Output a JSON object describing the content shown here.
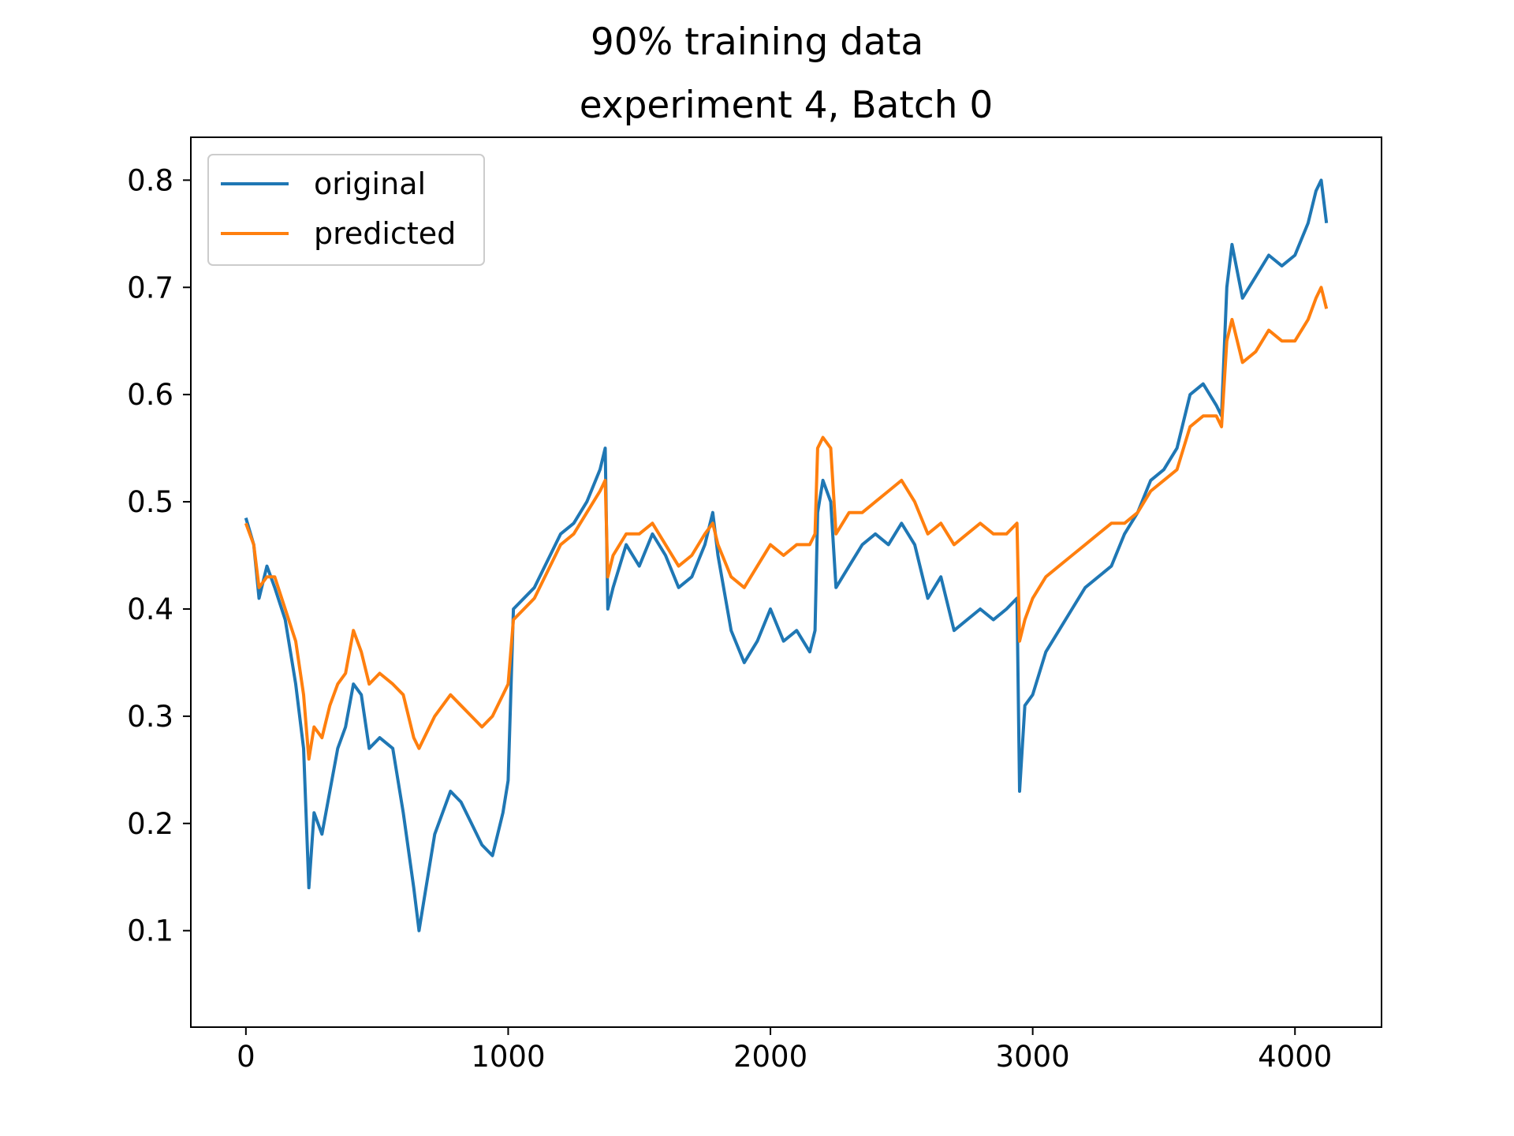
{
  "figure": {
    "suptitle": "90% training data",
    "title": "experiment 4, Batch 0"
  },
  "chart_data": {
    "type": "line",
    "title": "experiment 4, Batch 0",
    "xlabel": "",
    "ylabel": "",
    "xlim": [
      -210,
      4330
    ],
    "ylim": [
      0.01,
      0.84
    ],
    "xticks": [
      0,
      1000,
      2000,
      3000,
      4000
    ],
    "xtick_labels": [
      "0",
      "1000",
      "2000",
      "3000",
      "4000"
    ],
    "yticks": [
      0.1,
      0.2,
      0.3,
      0.4,
      0.5,
      0.6,
      0.7,
      0.8
    ],
    "ytick_labels": [
      "0.1",
      "0.2",
      "0.3",
      "0.4",
      "0.5",
      "0.6",
      "0.7",
      "0.8"
    ],
    "grid": false,
    "legend": {
      "position": "upper-left",
      "entries": [
        "original",
        "predicted"
      ]
    },
    "series": [
      {
        "name": "original",
        "color": "#1f77b4",
        "x": [
          0,
          30,
          50,
          80,
          110,
          150,
          190,
          220,
          240,
          260,
          290,
          320,
          350,
          380,
          410,
          440,
          470,
          510,
          560,
          600,
          640,
          660,
          680,
          720,
          780,
          820,
          860,
          900,
          940,
          980,
          1000,
          1020,
          1100,
          1200,
          1250,
          1300,
          1350,
          1370,
          1380,
          1400,
          1450,
          1500,
          1550,
          1600,
          1650,
          1700,
          1750,
          1780,
          1800,
          1850,
          1900,
          1950,
          2000,
          2050,
          2100,
          2150,
          2170,
          2180,
          2200,
          2230,
          2250,
          2300,
          2350,
          2400,
          2450,
          2500,
          2550,
          2600,
          2650,
          2700,
          2750,
          2800,
          2850,
          2900,
          2940,
          2950,
          2970,
          3000,
          3050,
          3100,
          3150,
          3200,
          3250,
          3300,
          3350,
          3400,
          3450,
          3500,
          3550,
          3600,
          3650,
          3700,
          3720,
          3740,
          3760,
          3800,
          3850,
          3900,
          3950,
          4000,
          4050,
          4080,
          4100,
          4120
        ],
        "y": [
          0.485,
          0.46,
          0.41,
          0.44,
          0.42,
          0.39,
          0.33,
          0.27,
          0.14,
          0.21,
          0.19,
          0.23,
          0.27,
          0.29,
          0.33,
          0.32,
          0.27,
          0.28,
          0.27,
          0.21,
          0.14,
          0.1,
          0.13,
          0.19,
          0.23,
          0.22,
          0.2,
          0.18,
          0.17,
          0.21,
          0.24,
          0.4,
          0.42,
          0.47,
          0.48,
          0.5,
          0.53,
          0.55,
          0.4,
          0.42,
          0.46,
          0.44,
          0.47,
          0.45,
          0.42,
          0.43,
          0.46,
          0.49,
          0.45,
          0.38,
          0.35,
          0.37,
          0.4,
          0.37,
          0.38,
          0.36,
          0.38,
          0.49,
          0.52,
          0.5,
          0.42,
          0.44,
          0.46,
          0.47,
          0.46,
          0.48,
          0.46,
          0.41,
          0.43,
          0.38,
          0.39,
          0.4,
          0.39,
          0.4,
          0.41,
          0.23,
          0.31,
          0.32,
          0.36,
          0.38,
          0.4,
          0.42,
          0.43,
          0.44,
          0.47,
          0.49,
          0.52,
          0.53,
          0.55,
          0.6,
          0.61,
          0.59,
          0.58,
          0.7,
          0.74,
          0.69,
          0.71,
          0.73,
          0.72,
          0.73,
          0.76,
          0.79,
          0.8,
          0.76
        ]
      },
      {
        "name": "predicted",
        "color": "#ff7f0e",
        "x": [
          0,
          30,
          50,
          80,
          110,
          150,
          190,
          220,
          240,
          260,
          290,
          320,
          350,
          380,
          410,
          440,
          470,
          510,
          560,
          600,
          640,
          660,
          680,
          720,
          780,
          820,
          860,
          900,
          940,
          980,
          1000,
          1020,
          1100,
          1200,
          1250,
          1300,
          1350,
          1370,
          1380,
          1400,
          1450,
          1500,
          1550,
          1600,
          1650,
          1700,
          1750,
          1780,
          1800,
          1850,
          1900,
          1950,
          2000,
          2050,
          2100,
          2150,
          2170,
          2180,
          2200,
          2230,
          2250,
          2300,
          2350,
          2400,
          2450,
          2500,
          2550,
          2600,
          2650,
          2700,
          2750,
          2800,
          2850,
          2900,
          2940,
          2950,
          2970,
          3000,
          3050,
          3100,
          3150,
          3200,
          3250,
          3300,
          3350,
          3400,
          3450,
          3500,
          3550,
          3600,
          3650,
          3700,
          3720,
          3740,
          3760,
          3800,
          3850,
          3900,
          3950,
          4000,
          4050,
          4080,
          4100,
          4120
        ],
        "y": [
          0.48,
          0.46,
          0.42,
          0.43,
          0.43,
          0.4,
          0.37,
          0.32,
          0.26,
          0.29,
          0.28,
          0.31,
          0.33,
          0.34,
          0.38,
          0.36,
          0.33,
          0.34,
          0.33,
          0.32,
          0.28,
          0.27,
          0.28,
          0.3,
          0.32,
          0.31,
          0.3,
          0.29,
          0.3,
          0.32,
          0.33,
          0.39,
          0.41,
          0.46,
          0.47,
          0.49,
          0.51,
          0.52,
          0.43,
          0.45,
          0.47,
          0.47,
          0.48,
          0.46,
          0.44,
          0.45,
          0.47,
          0.48,
          0.46,
          0.43,
          0.42,
          0.44,
          0.46,
          0.45,
          0.46,
          0.46,
          0.47,
          0.55,
          0.56,
          0.55,
          0.47,
          0.49,
          0.49,
          0.5,
          0.51,
          0.52,
          0.5,
          0.47,
          0.48,
          0.46,
          0.47,
          0.48,
          0.47,
          0.47,
          0.48,
          0.37,
          0.39,
          0.41,
          0.43,
          0.44,
          0.45,
          0.46,
          0.47,
          0.48,
          0.48,
          0.49,
          0.51,
          0.52,
          0.53,
          0.57,
          0.58,
          0.58,
          0.57,
          0.65,
          0.67,
          0.63,
          0.64,
          0.66,
          0.65,
          0.65,
          0.67,
          0.69,
          0.7,
          0.68
        ]
      }
    ]
  }
}
